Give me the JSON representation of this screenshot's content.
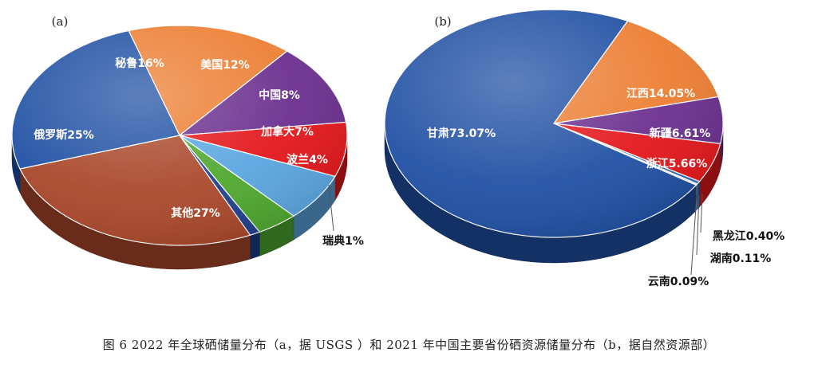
{
  "caption": "图 6   2022 年全球硒储量分布（a，据 USGS ）和 2021 年中国主要省份硒资源储量分布（b，据自然资源部）",
  "chart_data": [
    {
      "type": "pie",
      "panel_label": "(a)",
      "slices": [
        {
          "label": "秘鲁16%",
          "value": 16,
          "color": "#ec7d31"
        },
        {
          "label": "美国12%",
          "value": 12,
          "color": "#6a2e8e"
        },
        {
          "label": "中国8%",
          "value": 8,
          "color": "#e3161b"
        },
        {
          "label": "加拿大7%",
          "value": 7,
          "color": "#5aa6e0"
        },
        {
          "label": "波兰4%",
          "value": 4,
          "color": "#4ea72e"
        },
        {
          "label": "瑞典1%",
          "value": 1,
          "color": "#1f3f8c"
        },
        {
          "label": "其他27%",
          "value": 27,
          "color": "#a9462a"
        },
        {
          "label": "俄罗斯25%",
          "value": 25,
          "color": "#1f4fa3"
        }
      ]
    },
    {
      "type": "pie",
      "panel_label": "(b)",
      "slices": [
        {
          "label": "江西14.05%",
          "value": 14.05,
          "color": "#ec7d31"
        },
        {
          "label": "新疆6.61%",
          "value": 6.61,
          "color": "#6a2e8e"
        },
        {
          "label": "浙江5.66%",
          "value": 5.66,
          "color": "#e3161b"
        },
        {
          "label": "黑龙江0.40%",
          "value": 0.4,
          "color": "#2f6db5"
        },
        {
          "label": "湖南0.11%",
          "value": 0.11,
          "color": "#7fb2e5"
        },
        {
          "label": "云南0.09%",
          "value": 0.09,
          "color": "#d9d9d9"
        },
        {
          "label": "甘肃73.07%",
          "value": 73.07,
          "color": "#1f4fa3"
        }
      ]
    }
  ]
}
